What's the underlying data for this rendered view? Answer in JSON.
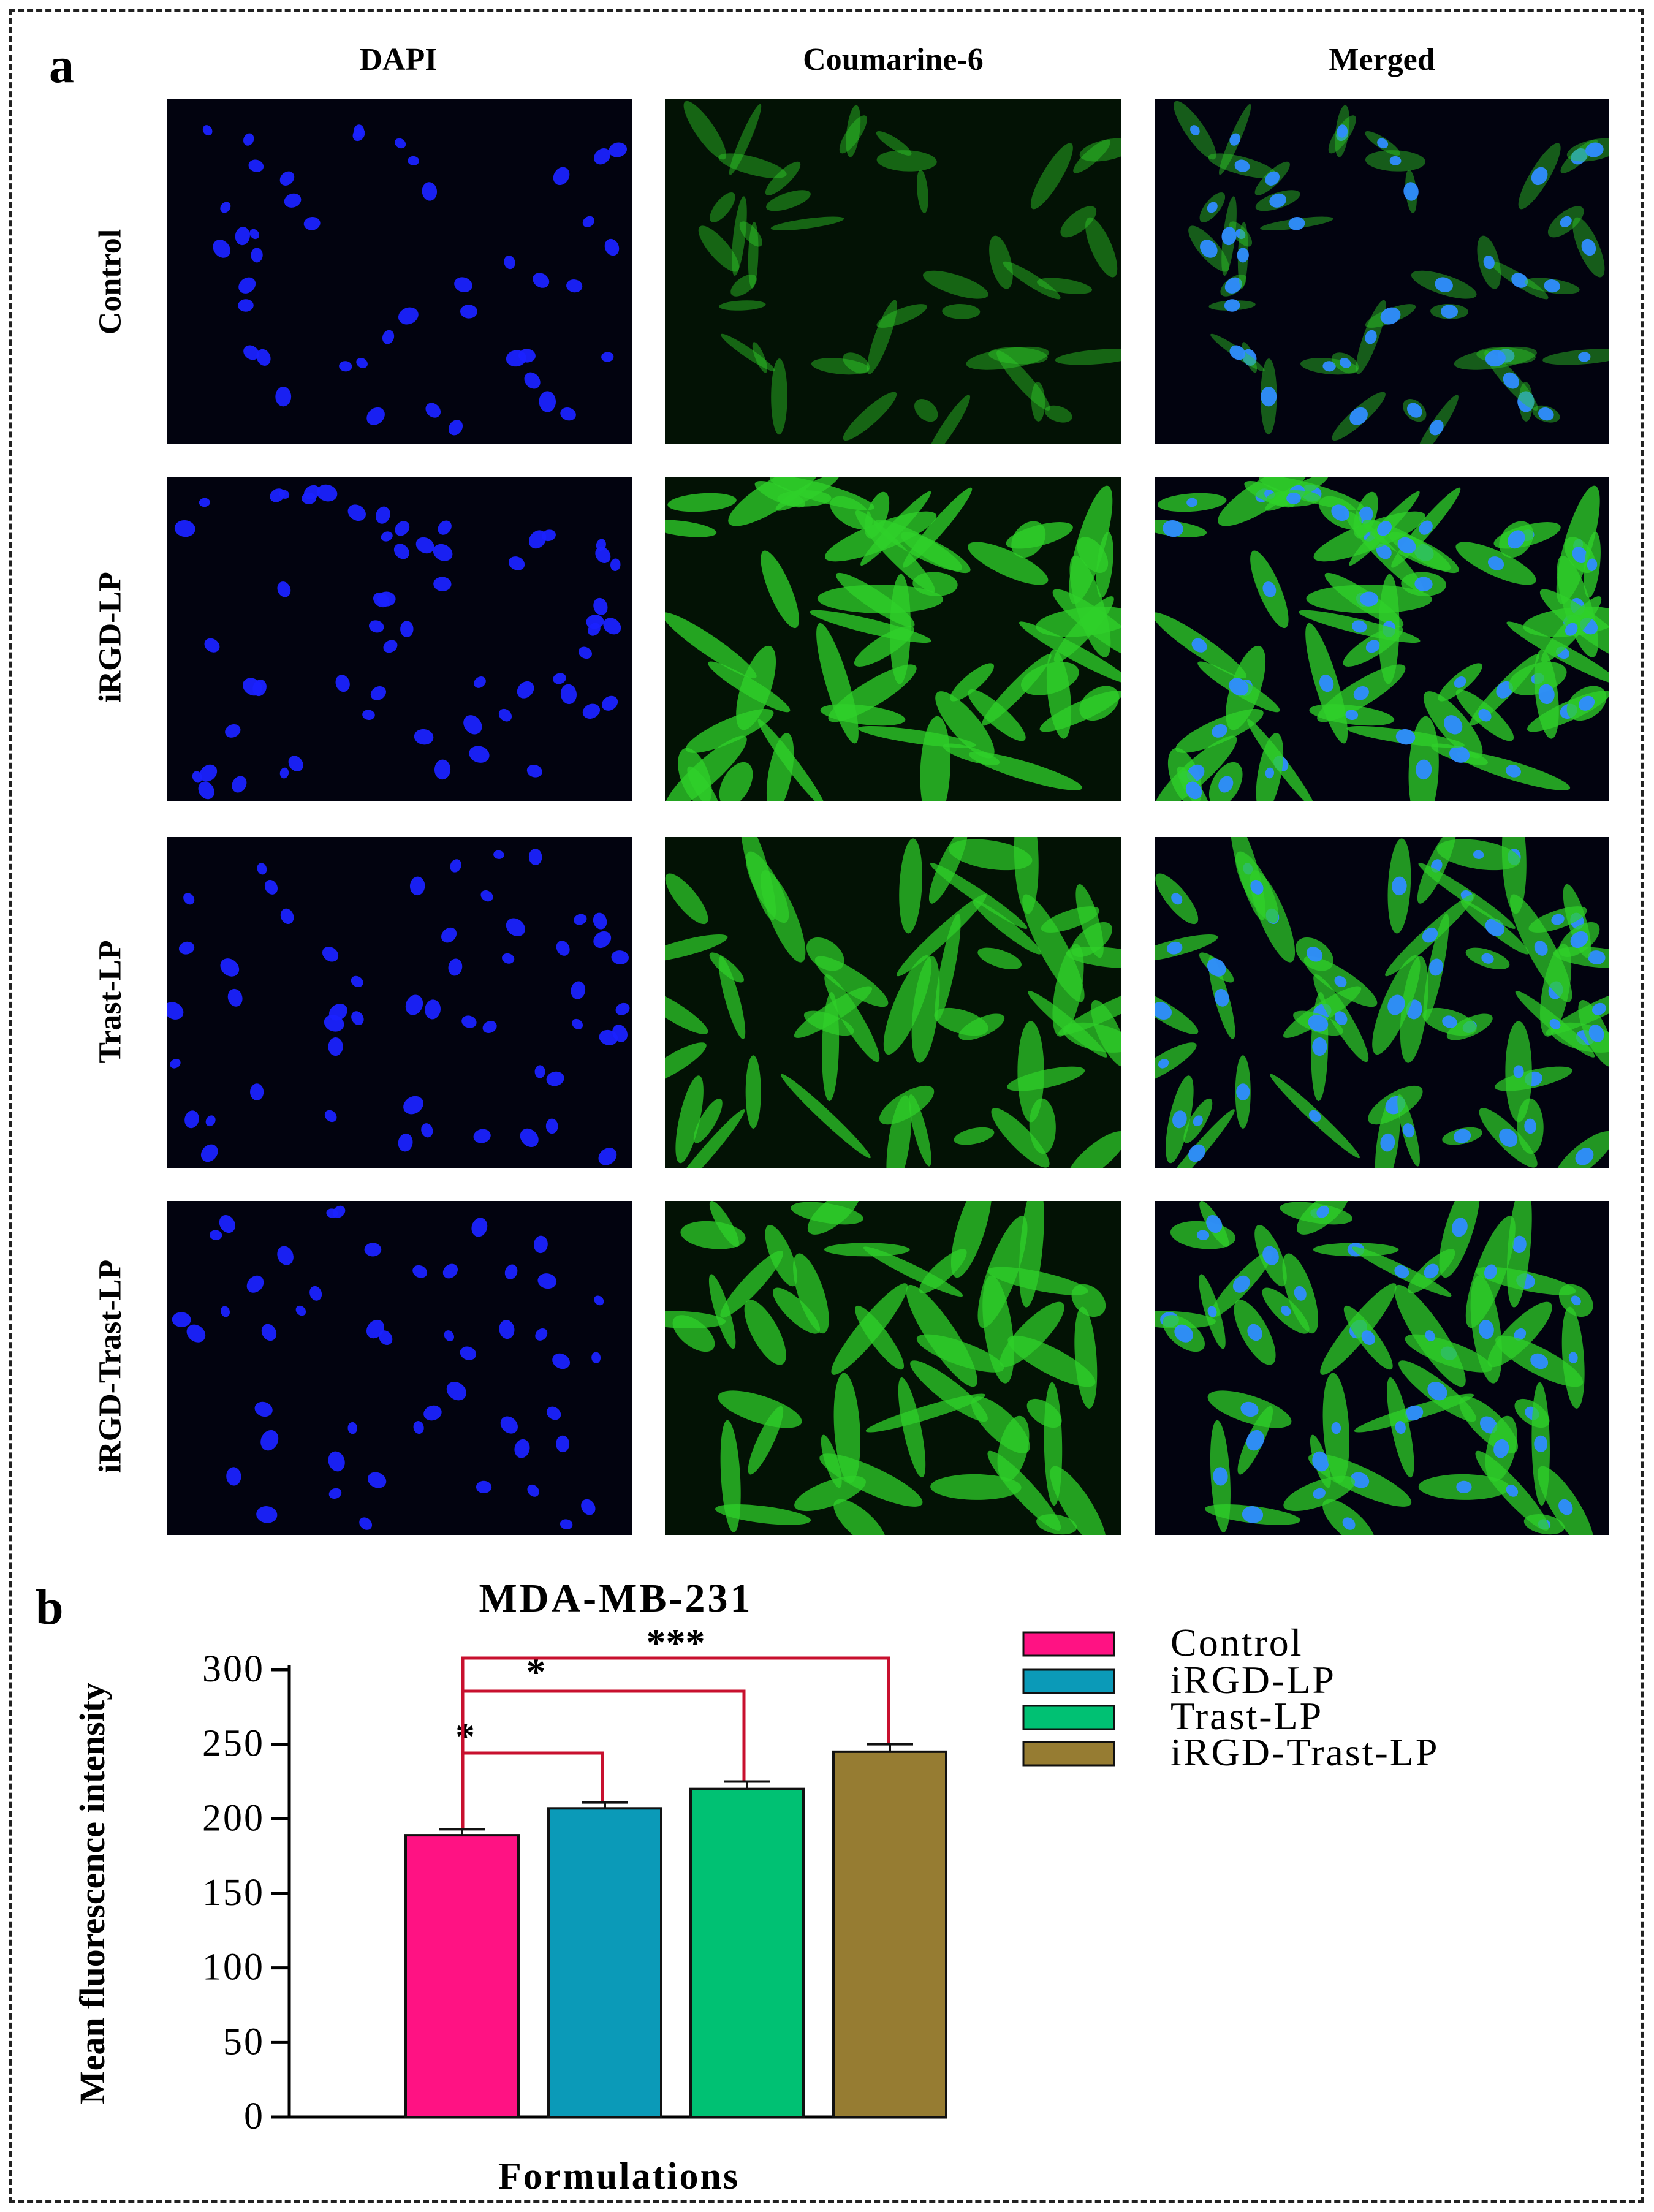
{
  "panel_a": {
    "label": "a",
    "columns": [
      "DAPI",
      "Coumarine-6",
      "Merged"
    ],
    "rows": [
      "Control",
      "iRGD-LP",
      "Trast-LP",
      "iRGD-Trast-LP"
    ]
  },
  "panel_b": {
    "label": "b"
  },
  "chart_data": {
    "type": "bar",
    "title": "MDA-MB-231",
    "xlabel": "Formulations",
    "ylabel": "Mean fluorescence intensity",
    "ylim": [
      0,
      300
    ],
    "yticks": [
      0,
      50,
      100,
      150,
      200,
      250,
      300
    ],
    "categories": [
      "Control",
      "iRGD-LP",
      "Trast-LP",
      "iRGD-Trast-LP"
    ],
    "values": [
      189,
      207,
      220,
      245
    ],
    "errors": [
      4,
      4,
      5,
      5
    ],
    "colors": [
      "#ff1283",
      "#0b9ab8",
      "#00c173",
      "#967c32"
    ],
    "legend": {
      "position": "top-right",
      "entries": [
        "Control",
        "iRGD-LP",
        "Trast-LP",
        "iRGD-Trast-LP"
      ]
    },
    "significance": [
      {
        "from": "Control",
        "to": "iRGD-LP",
        "label": "*"
      },
      {
        "from": "Control",
        "to": "Trast-LP",
        "label": "*"
      },
      {
        "from": "Control",
        "to": "iRGD-Trast-LP",
        "label": "***"
      }
    ],
    "significance_color": "#c8102e"
  }
}
